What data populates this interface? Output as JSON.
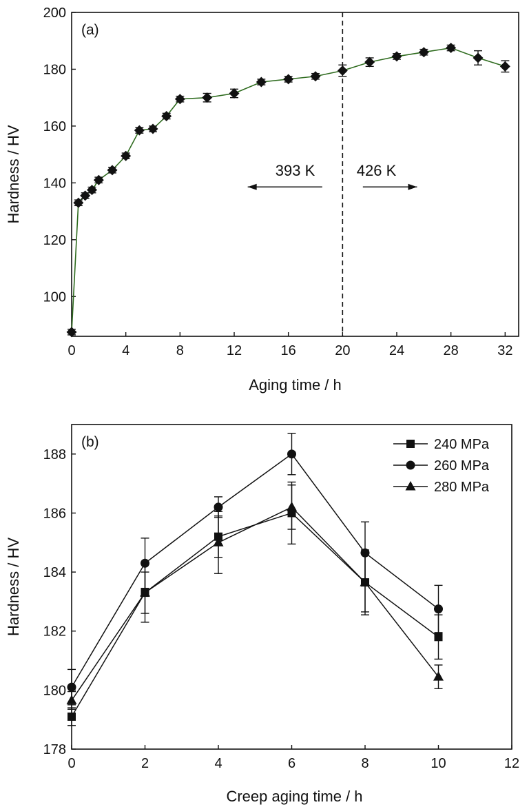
{
  "chart_data": [
    {
      "type": "line",
      "panel_label": "(a)",
      "xlabel": "Aging time / h",
      "ylabel": "Hardness / HV",
      "xlim": [
        0,
        33
      ],
      "ylim": [
        86,
        200
      ],
      "xticks": [
        0,
        4,
        8,
        12,
        16,
        20,
        24,
        28,
        32
      ],
      "yticks": [
        100,
        120,
        140,
        160,
        180,
        200
      ],
      "grid": false,
      "line_color": "#2e6b1e",
      "marker": "diamond",
      "series": [
        {
          "x": [
            0,
            0.5,
            1,
            1.5,
            2,
            3,
            4,
            5,
            6,
            7,
            8,
            10,
            12,
            14,
            16,
            18,
            20,
            22,
            24,
            26,
            28,
            30,
            32
          ],
          "y": [
            87.5,
            133,
            135.5,
            137.5,
            141,
            144.5,
            149.5,
            158.5,
            159,
            163.5,
            169.5,
            170,
            171.5,
            175.5,
            176.5,
            177.5,
            179.5,
            182.5,
            184.5,
            186,
            187.5,
            184,
            181
          ],
          "err": [
            1,
            1,
            1,
            1,
            1,
            1,
            1,
            1,
            1,
            1,
            1,
            1.5,
            1.5,
            1,
            1,
            1,
            2,
            1.5,
            1,
            1,
            1,
            2.5,
            2
          ]
        }
      ],
      "divider_x": 20,
      "annotations": [
        {
          "text": "393 K",
          "x": 16.5,
          "y": 141,
          "arrow": "left",
          "arrow_from": 18.5,
          "arrow_to": 13
        },
        {
          "text": "426 K",
          "x": 22.5,
          "y": 141,
          "arrow": "right",
          "arrow_from": 21.5,
          "arrow_to": 25.5
        }
      ]
    },
    {
      "type": "line",
      "panel_label": "(b)",
      "xlabel": "Creep aging time / h",
      "ylabel": "Hardness / HV",
      "xlim": [
        0,
        12
      ],
      "ylim": [
        178,
        189
      ],
      "xticks": [
        0,
        2,
        4,
        6,
        8,
        10,
        12
      ],
      "yticks": [
        178,
        180,
        182,
        184,
        186,
        188
      ],
      "grid": false,
      "legend_position": "top-right",
      "x": [
        0,
        2,
        4,
        6,
        8,
        10
      ],
      "series": [
        {
          "name": "240 MPa",
          "marker": "square",
          "values": [
            179.1,
            183.3,
            185.2,
            186.0,
            183.65,
            181.8
          ],
          "err": [
            0.3,
            0.7,
            0.7,
            1.05,
            1.1,
            0.75
          ]
        },
        {
          "name": "260 MPa",
          "marker": "circle",
          "values": [
            180.1,
            184.3,
            186.2,
            188.0,
            184.65,
            182.75
          ],
          "err": [
            0.6,
            0.85,
            0.35,
            0.7,
            1.05,
            0.8
          ]
        },
        {
          "name": "280 MPa",
          "marker": "triangle",
          "values": [
            179.65,
            183.3,
            185.0,
            186.2,
            183.65,
            180.45
          ],
          "err": [
            0.3,
            1.0,
            1.05,
            0.75,
            1.0,
            0.4
          ]
        }
      ]
    }
  ]
}
